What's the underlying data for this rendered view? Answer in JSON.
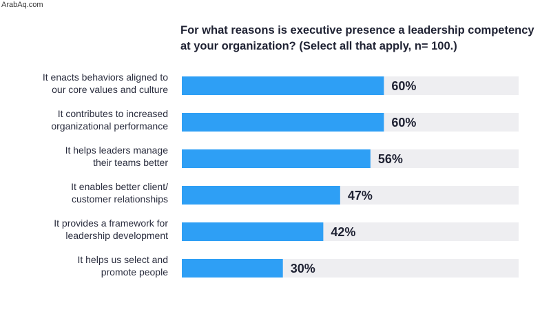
{
  "watermark": "ArabAq.com",
  "chart_data": {
    "type": "bar",
    "orientation": "horizontal",
    "title": "For what reasons is executive presence a leadership competency\nat  your organization? (Select all that apply, n= 100.)",
    "categories": [
      [
        "It enacts behaviors aligned to",
        "our core values and culture"
      ],
      [
        "It contributes to increased",
        "organizational performance"
      ],
      [
        "It helps leaders manage",
        "their teams better"
      ],
      [
        "It enables better client/",
        "customer relationships"
      ],
      [
        "It provides a framework for",
        "leadership development"
      ],
      [
        "It helps us select and",
        "promote people"
      ]
    ],
    "values": [
      60,
      60,
      56,
      47,
      42,
      30
    ],
    "value_labels": [
      "60%",
      "60%",
      "56%",
      "47%",
      "42%",
      "30%"
    ],
    "xlim": [
      0,
      100
    ],
    "bar_color": "#2e9ff5",
    "track_color": "#eeeef1"
  }
}
